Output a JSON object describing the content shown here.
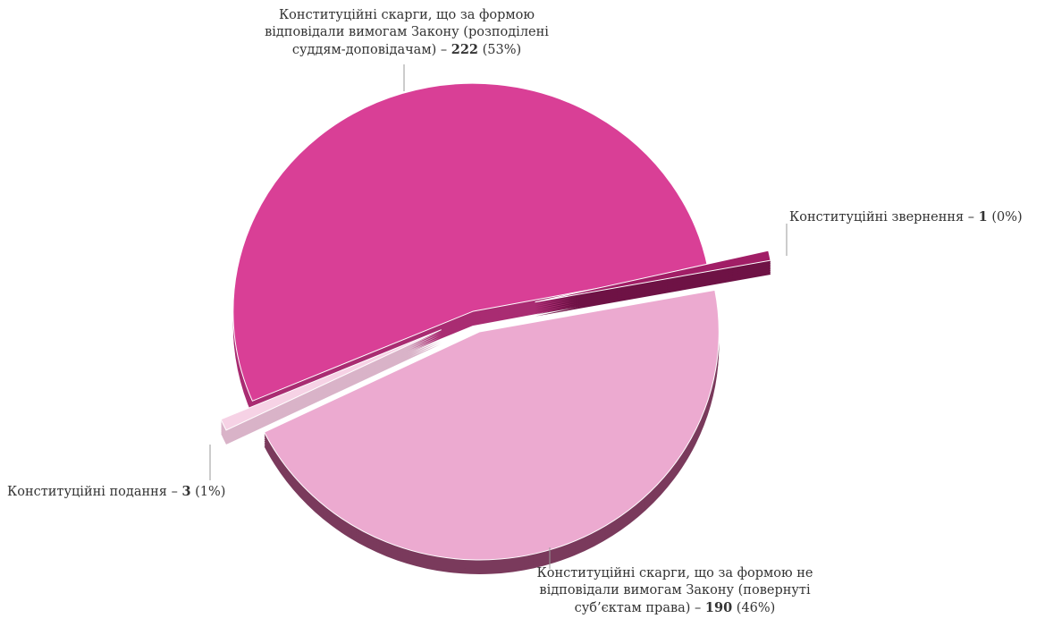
{
  "chart_data": {
    "type": "pie",
    "categories": [
      "Конституційні скарги, що за формою відповідали вимогам Закону (розподілені суддям-доповідачам)",
      "Конституційні подання",
      "Конституційні скарги, що за формою не відповідали вимогам Закону (повернуті суб’єктам права)",
      "Конституційні звернення"
    ],
    "values": [
      222,
      3,
      190,
      1
    ],
    "percents": [
      53,
      1,
      46,
      0
    ],
    "percent_labels": [
      "(53%)",
      "(1%)",
      "(46%)",
      "(0%)"
    ],
    "separator": "–",
    "colors": [
      "#d93f96",
      "#f6d2e5",
      "#ecaad0",
      "#a11e66"
    ],
    "side_colors": [
      "#a92c72",
      "#d9b3c8",
      "#7a3a5c",
      "#6e1245"
    ]
  }
}
